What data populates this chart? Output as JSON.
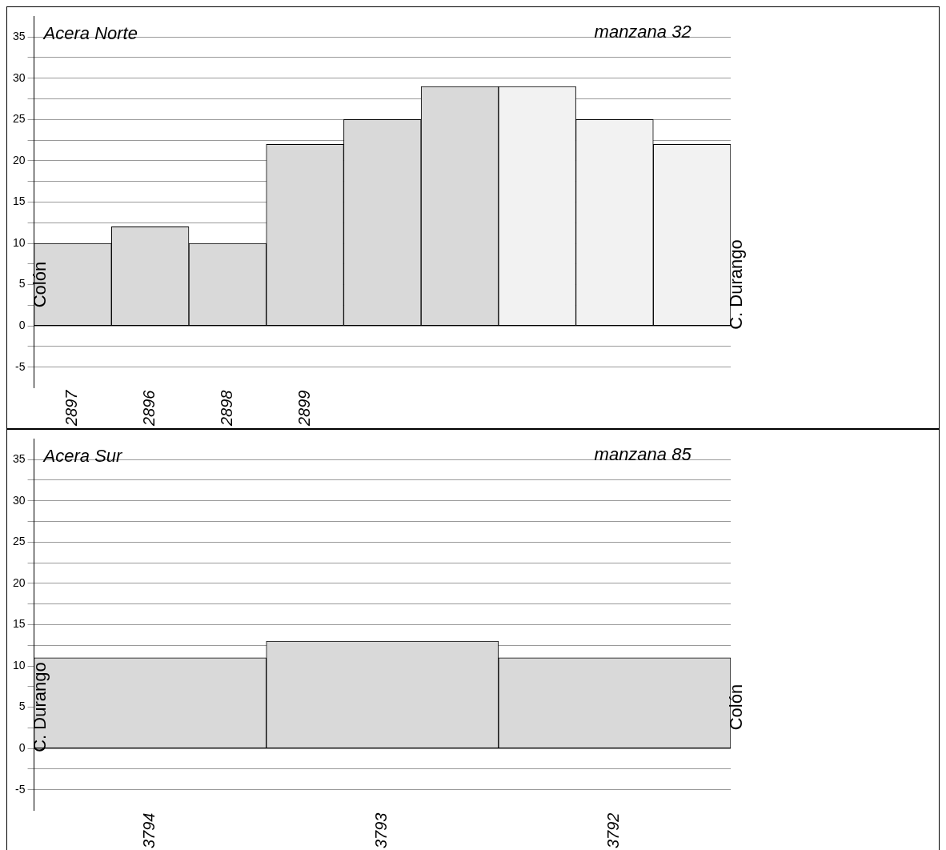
{
  "chart_data": [
    {
      "type": "bar",
      "title": "Acera Norte",
      "subtitle": "manzana 32",
      "categories": [
        "2897",
        "2896",
        "2898",
        "2899",
        null,
        null,
        null,
        null,
        null
      ],
      "series": [
        {
          "color": "#d9d9d9",
          "values": [
            10,
            12,
            10,
            22,
            25,
            29,
            null,
            null,
            null
          ]
        },
        {
          "color": "#f2f2f2",
          "values": [
            null,
            null,
            null,
            null,
            null,
            null,
            29,
            25,
            22
          ]
        }
      ],
      "annotations": [
        "Colón",
        "C. Durango"
      ],
      "ylim": [
        -7.5,
        37.5
      ],
      "yticks": [
        -5,
        {
          "value": -2.5,
          "label": null
        },
        0,
        {
          "value": 2.5,
          "label": null
        },
        5,
        {
          "value": 7.5,
          "label": null
        },
        10,
        {
          "value": 12.5,
          "label": null
        },
        15,
        {
          "value": 17.5,
          "label": null
        },
        20,
        {
          "value": 22.5,
          "label": null
        },
        25,
        {
          "value": 27.5,
          "label": null
        },
        30,
        {
          "value": 32.5,
          "label": null
        },
        35
      ],
      "grid": "y",
      "legend": false
    },
    {
      "type": "bar",
      "title": "Acera Sur",
      "subtitle": "manzana 85",
      "categories": [
        "3794",
        "3793",
        "3792"
      ],
      "series": [
        {
          "color": "#d9d9d9",
          "values": [
            11,
            13,
            11
          ]
        }
      ],
      "annotations": [
        "C. Durango",
        "Colón"
      ],
      "ylim": [
        -7.5,
        37.5
      ],
      "yticks": [
        -5,
        {
          "value": -2.5,
          "label": null
        },
        0,
        {
          "value": 2.5,
          "label": null
        },
        5,
        {
          "value": 7.5,
          "label": null
        },
        10,
        {
          "value": 12.5,
          "label": null
        },
        15,
        {
          "value": 17.5,
          "label": null
        },
        20,
        {
          "value": 22.5,
          "label": null
        },
        25,
        {
          "value": 27.5,
          "label": null
        },
        30,
        {
          "value": 32.5,
          "label": null
        },
        35
      ],
      "grid": "y",
      "legend": false
    }
  ]
}
